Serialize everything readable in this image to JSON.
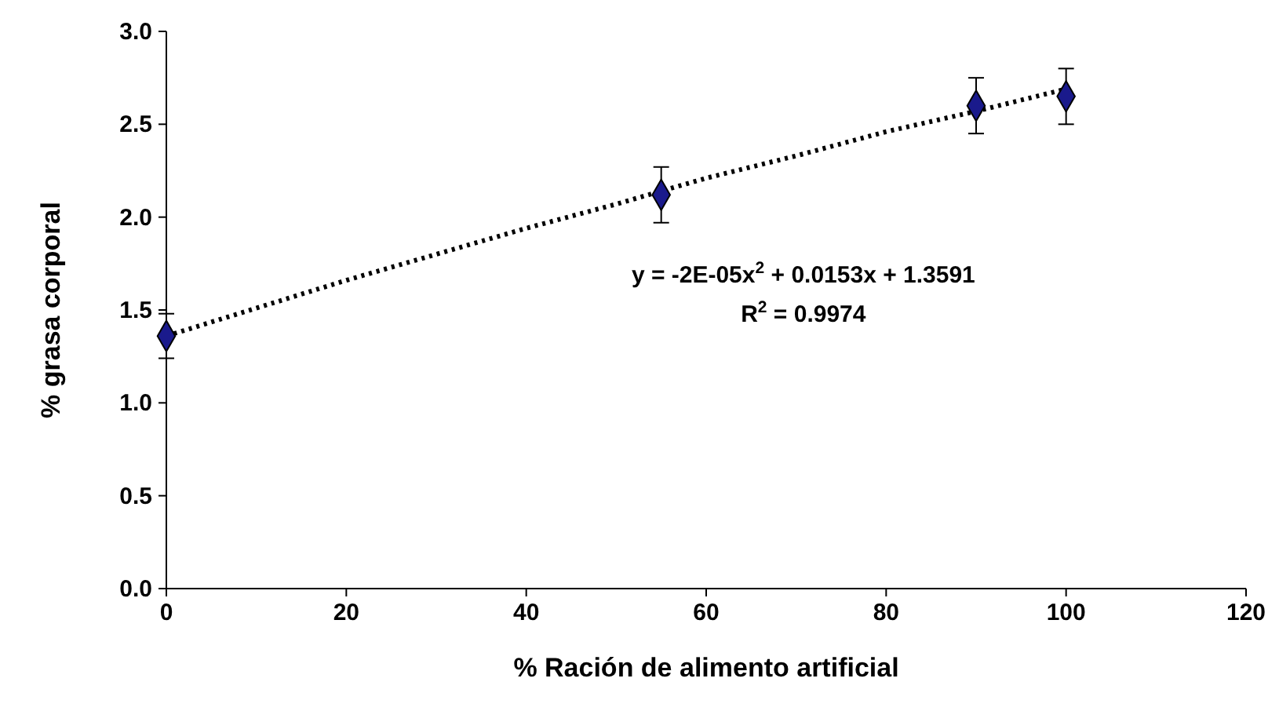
{
  "chart_data": {
    "type": "scatter",
    "xlabel": "% Ración de alimento artificial",
    "ylabel": "% grasa corporal",
    "xlim": [
      0,
      120
    ],
    "xticks": [
      0,
      20,
      40,
      60,
      80,
      100,
      120
    ],
    "ylim": [
      0,
      3
    ],
    "yticks": [
      {
        "value": 0,
        "label": "0.0"
      },
      {
        "value": 0.5,
        "label": "0.5"
      },
      {
        "value": 1,
        "label": "1.0"
      },
      {
        "value": 1.5,
        "label": "1.5"
      },
      {
        "value": 2,
        "label": "2.0"
      },
      {
        "value": 2.5,
        "label": "2.5"
      },
      {
        "value": 3,
        "label": "3.0"
      }
    ],
    "grid": false,
    "marker": "diamond",
    "series": [
      {
        "color": "#1a1a8c",
        "x": [
          0,
          55,
          90,
          100
        ],
        "values": [
          1.36,
          2.12,
          2.6,
          2.65
        ],
        "errors": [
          0.12,
          0.15,
          0.15,
          0.15
        ]
      },
      {
        "type": "line",
        "color": "#000000",
        "line_style": "dotted",
        "marker": "none",
        "x": [
          0,
          10,
          20,
          30,
          40,
          50,
          60,
          70,
          80,
          90,
          100
        ],
        "values": [
          1.36,
          1.51,
          1.66,
          1.8,
          1.94,
          2.07,
          2.21,
          2.33,
          2.46,
          2.57,
          2.69
        ]
      }
    ],
    "annotations": [
      "y = -2E-05x$^{2}$ + 0.0153x + 1.3591",
      "R$^{2}$ = 0.9974"
    ]
  }
}
